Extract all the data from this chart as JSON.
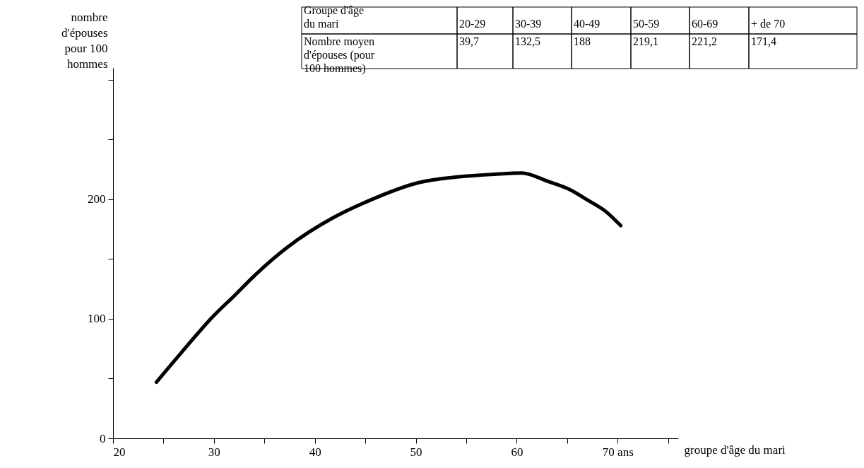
{
  "chart_data": {
    "type": "line",
    "xlabel": "groupe d'âge du mari",
    "ylabel": "nombre\nd'épouses\npour 100\nhommes",
    "x": [
      24.3,
      26.8,
      29.8,
      32.1,
      34.0,
      37.3,
      41.9,
      45.4,
      50.3,
      54.5,
      57.8,
      60.5,
      63.1,
      65.3,
      67.1,
      68.8,
      70.3
    ],
    "series": [
      {
        "color": "#000000",
        "values": [
          47,
          72,
          101,
          120,
          136,
          160,
          185,
          199,
          214,
          219,
          221,
          222,
          215,
          208,
          199,
          190,
          178
        ]
      }
    ],
    "xlim": [
      20,
      76
    ],
    "xticks": [
      20,
      {
        "value": 25,
        "label": null
      },
      30,
      {
        "value": 35,
        "label": null
      },
      40,
      {
        "value": 45,
        "label": null
      },
      50,
      {
        "value": 55,
        "label": null
      },
      60,
      {
        "value": 65,
        "label": null
      },
      {
        "value": 70,
        "label": "70 ans"
      },
      {
        "value": 75,
        "label": null
      }
    ],
    "ylim": [
      0,
      310
    ],
    "yticks": [
      0,
      {
        "value": 50,
        "label": null
      },
      100,
      {
        "value": 150,
        "label": null
      },
      200,
      {
        "value": 250,
        "label": null
      },
      {
        "value": 300,
        "label": null
      }
    ],
    "grid": false,
    "line_style": "solid",
    "annotations": [
      "Groupe d'âge\ndu mari",
      "20-29",
      "30-39",
      "40-49",
      "50-59",
      "60-69",
      "+ de 70",
      "Nombre moyen\nd'épouses (pour\n100 hommes)",
      "39,7",
      "132,5",
      "188",
      "219,1",
      "221,2",
      "171,4"
    ]
  }
}
